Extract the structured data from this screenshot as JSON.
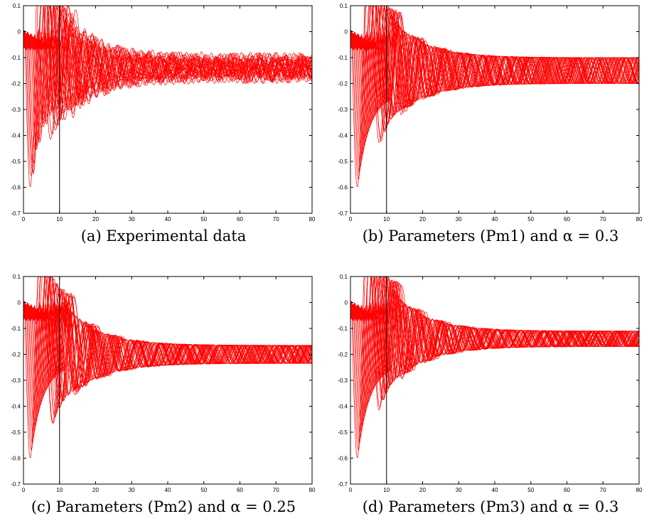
{
  "chart_data": [
    {
      "type": "line",
      "caption": "(a) Experimental data",
      "xlim": [
        0,
        80
      ],
      "ylim": [
        -0.7,
        0.1
      ],
      "xticks": [
        "0",
        "10",
        "20",
        "30",
        "40",
        "50",
        "60",
        "70",
        "80"
      ],
      "yticks": [
        "0.1",
        "0",
        "-0.1",
        "-0.2",
        "-0.3",
        "-0.4",
        "-0.5",
        "-0.6",
        "-0.7"
      ],
      "marker_line_x": 10,
      "series_color": "#ff0000",
      "grid": false,
      "series_shape": {
        "min": -0.63,
        "min_x": 2,
        "late_center": -0.14,
        "late_half_amplitude": 0.03,
        "noisy": true
      }
    },
    {
      "type": "line",
      "caption": "(b) Parameters (Pm1) and α = 0.3",
      "xlim": [
        0,
        80
      ],
      "ylim": [
        -0.7,
        0.1
      ],
      "xticks": [
        "0",
        "10",
        "20",
        "30",
        "40",
        "50",
        "60",
        "70",
        "80"
      ],
      "yticks": [
        "0.1",
        "0",
        "-0.1",
        "-0.2",
        "-0.3",
        "-0.4",
        "-0.5",
        "-0.6",
        "-0.7"
      ],
      "marker_line_x": 10,
      "series_color": "#ff0000",
      "grid": false,
      "series_shape": {
        "min": -0.63,
        "min_x": 2,
        "peak": 0.06,
        "peak_x": 13,
        "late_center": -0.15,
        "late_half_amplitude": 0.05,
        "noisy": false
      }
    },
    {
      "type": "line",
      "caption": "(c) Parameters (Pm2) and α = 0.25",
      "xlim": [
        0,
        80
      ],
      "ylim": [
        -0.7,
        0.1
      ],
      "xticks": [
        "0",
        "10",
        "20",
        "30",
        "40",
        "50",
        "60",
        "70",
        "80"
      ],
      "yticks": [
        "0.1",
        "0",
        "-0.1",
        "-0.2",
        "-0.3",
        "-0.4",
        "-0.5",
        "-0.6",
        "-0.7"
      ],
      "marker_line_x": 10,
      "series_color": "#ff0000",
      "grid": false,
      "series_shape": {
        "min": -0.63,
        "min_x": 2,
        "peak": 0.06,
        "peak_x": 14,
        "late_center": -0.2,
        "late_half_amplitude": 0.035,
        "noisy": false
      }
    },
    {
      "type": "line",
      "caption": "(d) Parameters (Pm3) and α = 0.3",
      "xlim": [
        0,
        80
      ],
      "ylim": [
        -0.7,
        0.1
      ],
      "xticks": [
        "0",
        "10",
        "20",
        "30",
        "40",
        "50",
        "60",
        "70",
        "80"
      ],
      "yticks": [
        "0.1",
        "0",
        "-0.1",
        "-0.2",
        "-0.3",
        "-0.4",
        "-0.5",
        "-0.6",
        "-0.7"
      ],
      "marker_line_x": 10,
      "series_color": "#ff0000",
      "grid": false,
      "series_shape": {
        "min": -0.63,
        "min_x": 2,
        "peak": 0.03,
        "peak_x": 13,
        "late_center": -0.14,
        "late_half_amplitude": 0.03,
        "noisy": false
      }
    }
  ]
}
